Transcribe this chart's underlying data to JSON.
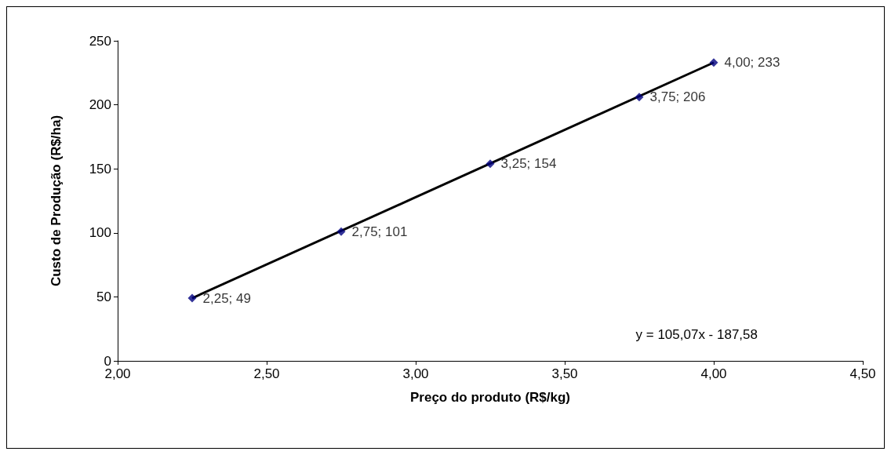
{
  "chart_data": {
    "type": "scatter",
    "xlabel": "Preço do produto (R$/kg)",
    "ylabel": "Custo de Produção (R$/ha)",
    "series": [
      {
        "color": "#000080",
        "x": [
          2.25,
          2.75,
          3.25,
          3.75,
          4.0
        ],
        "values": [
          49,
          101,
          154,
          206,
          233
        ],
        "value_labels": [
          "2,25; 49",
          "2,75; 101",
          "3,25; 154",
          "3,75; 206",
          "4,00; 233"
        ],
        "marker": "diamond"
      },
      {
        "type": "line",
        "color": "#000000",
        "x": [
          2.25,
          4.0
        ],
        "values": [
          49,
          233
        ],
        "marker": "none",
        "line_style": "solid"
      }
    ],
    "annotations": [
      "y = 105,07x - 187,58"
    ],
    "xlim": [
      2,
      4.5
    ],
    "xticks": [
      {
        "value": 2,
        "label": "2,00"
      },
      {
        "value": 2.5,
        "label": "2,50"
      },
      {
        "value": 3,
        "label": "3,00"
      },
      {
        "value": 3.5,
        "label": "3,50"
      },
      {
        "value": 4,
        "label": "4,00"
      },
      {
        "value": 4.5,
        "label": "4,50"
      }
    ],
    "ylim": [
      0,
      250
    ],
    "yticks": [
      0,
      50,
      100,
      150,
      200,
      250
    ],
    "grid": false
  }
}
